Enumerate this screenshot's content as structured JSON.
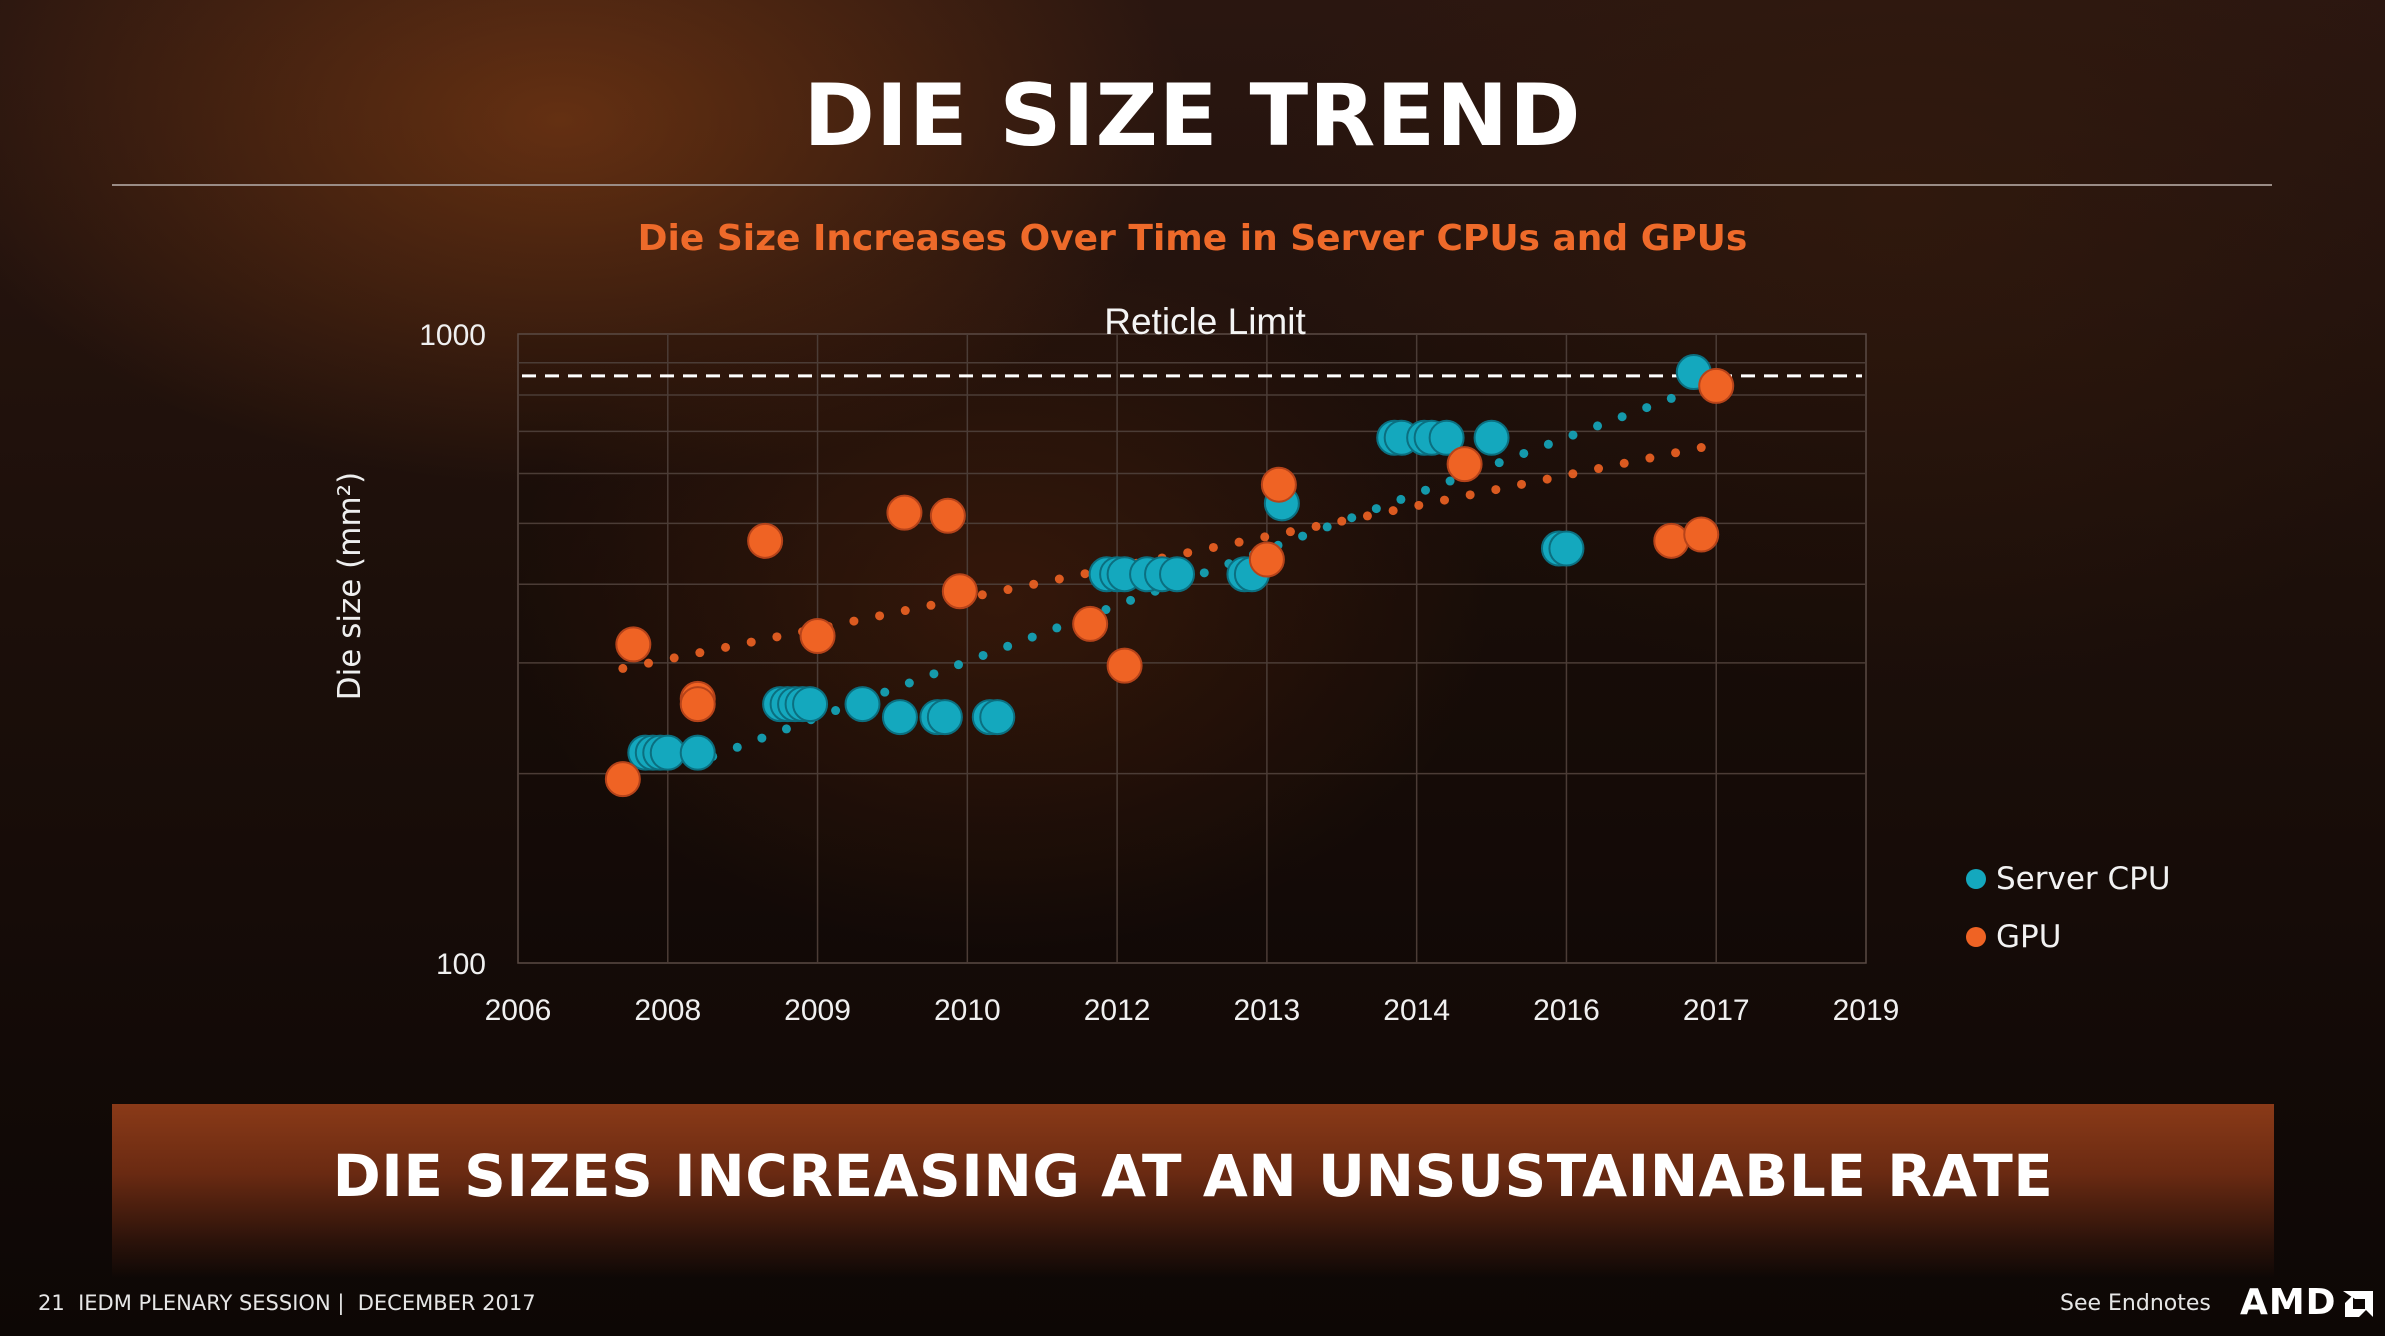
{
  "slide": {
    "title": "DIE SIZE TREND",
    "subtitle": "Die Size Increases Over Time in Server CPUs and GPUs",
    "banner": "DIE SIZES INCREASING AT AN UNSUSTAINABLE RATE",
    "footer_left": "21  IEDM PLENARY SESSION |  DECEMBER 2017",
    "footer_right": "See Endnotes",
    "logo": "AMD"
  },
  "colors": {
    "server_cpu": "#14a8be",
    "gpu": "#ef6324",
    "subtitle": "#ee6a2a"
  },
  "chart_data": {
    "type": "scatter",
    "title": "",
    "xlabel": "",
    "ylabel": "Die size (mm²)",
    "x_tick_labels": [
      "2006",
      "2008",
      "2009",
      "2010",
      "2012",
      "2013",
      "2014",
      "2016",
      "2017",
      "2019"
    ],
    "x_range": [
      0,
      9
    ],
    "y_scale": "log",
    "ylim": [
      100,
      1000
    ],
    "y_tick_labels": [
      "100",
      "1000"
    ],
    "grid": true,
    "legend": "right",
    "reference_line": {
      "label": "Reticle Limit",
      "y": 858,
      "style": "dashed"
    },
    "series": [
      {
        "name": "Server CPU",
        "trendline": "dotted",
        "trend_endpoints": [
          [
            1.3,
            213
          ],
          [
            7.7,
            790
          ]
        ],
        "points": [
          [
            0.85,
            216
          ],
          [
            0.9,
            216
          ],
          [
            0.95,
            216
          ],
          [
            1.0,
            216
          ],
          [
            1.2,
            216
          ],
          [
            1.75,
            258
          ],
          [
            1.8,
            258
          ],
          [
            1.85,
            258
          ],
          [
            1.9,
            258
          ],
          [
            1.95,
            258
          ],
          [
            2.3,
            258
          ],
          [
            2.55,
            246
          ],
          [
            2.8,
            246
          ],
          [
            2.85,
            246
          ],
          [
            3.15,
            246
          ],
          [
            3.2,
            246
          ],
          [
            3.93,
            415
          ],
          [
            4.0,
            415
          ],
          [
            4.05,
            415
          ],
          [
            4.2,
            415
          ],
          [
            4.3,
            415
          ],
          [
            4.4,
            415
          ],
          [
            4.85,
            415
          ],
          [
            4.9,
            415
          ],
          [
            5.1,
            538
          ],
          [
            5.85,
            684
          ],
          [
            5.9,
            684
          ],
          [
            6.05,
            684
          ],
          [
            6.1,
            684
          ],
          [
            6.2,
            684
          ],
          [
            6.5,
            684
          ],
          [
            6.95,
            456
          ],
          [
            7.0,
            456
          ],
          [
            7.85,
            870
          ]
        ]
      },
      {
        "name": "GPU",
        "trendline": "dotted",
        "trend_endpoints": [
          [
            0.7,
            294
          ],
          [
            7.9,
            660
          ]
        ],
        "points": [
          [
            0.7,
            196
          ],
          [
            0.77,
            321
          ],
          [
            1.2,
            263
          ],
          [
            1.2,
            258
          ],
          [
            1.65,
            469
          ],
          [
            2.0,
            331
          ],
          [
            2.58,
            520
          ],
          [
            2.87,
            514
          ],
          [
            2.95,
            390
          ],
          [
            3.82,
            346
          ],
          [
            4.05,
            297
          ],
          [
            5.0,
            438
          ],
          [
            5.08,
            576
          ],
          [
            6.32,
            621
          ],
          [
            7.7,
            469
          ],
          [
            7.9,
            480
          ],
          [
            8.0,
            827
          ]
        ]
      }
    ]
  }
}
